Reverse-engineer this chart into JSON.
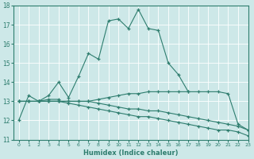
{
  "xlabel": "Humidex (Indice chaleur)",
  "xlim": [
    -0.5,
    23
  ],
  "ylim": [
    11,
    18
  ],
  "yticks": [
    11,
    12,
    13,
    14,
    15,
    16,
    17,
    18
  ],
  "xticks": [
    0,
    1,
    2,
    3,
    4,
    5,
    6,
    7,
    8,
    9,
    10,
    11,
    12,
    13,
    14,
    15,
    16,
    17,
    18,
    19,
    20,
    21,
    22,
    23
  ],
  "line_color": "#2e7d6e",
  "bg_color": "#cde8e8",
  "grid_color": "#b0d4d4",
  "y_main": [
    12.0,
    13.3,
    13.0,
    13.3,
    14.0,
    13.2,
    14.3,
    15.5,
    15.2,
    17.2,
    17.3,
    16.8,
    17.8,
    16.8,
    16.7,
    15.0,
    14.4,
    13.5,
    null,
    null,
    null,
    null,
    null,
    null
  ],
  "y_upper_flat": [
    null,
    null,
    13.0,
    13.1,
    13.1,
    null,
    null,
    null,
    null,
    null,
    null,
    null,
    null,
    null,
    null,
    null,
    null,
    null,
    null,
    null,
    null,
    null,
    null,
    null
  ],
  "y_rise": [
    13.0,
    13.0,
    13.0,
    13.0,
    13.0,
    13.0,
    13.0,
    13.0,
    13.1,
    13.2,
    13.3,
    13.4,
    13.4,
    13.5,
    13.5,
    13.5,
    13.5,
    13.5,
    13.5,
    13.5,
    13.5,
    13.4,
    11.8,
    11.5
  ],
  "y_mid": [
    13.0,
    13.0,
    13.0,
    13.0,
    13.0,
    13.0,
    13.0,
    13.0,
    12.9,
    12.8,
    12.7,
    12.6,
    12.6,
    12.5,
    12.5,
    12.4,
    12.3,
    12.2,
    12.1,
    12.0,
    11.9,
    11.8,
    11.7,
    11.5
  ],
  "y_low": [
    13.0,
    13.0,
    13.0,
    13.0,
    13.0,
    12.9,
    12.8,
    12.7,
    12.6,
    12.5,
    12.4,
    12.3,
    12.2,
    12.2,
    12.1,
    12.0,
    11.9,
    11.8,
    11.7,
    11.6,
    11.5,
    11.5,
    11.4,
    11.2
  ]
}
